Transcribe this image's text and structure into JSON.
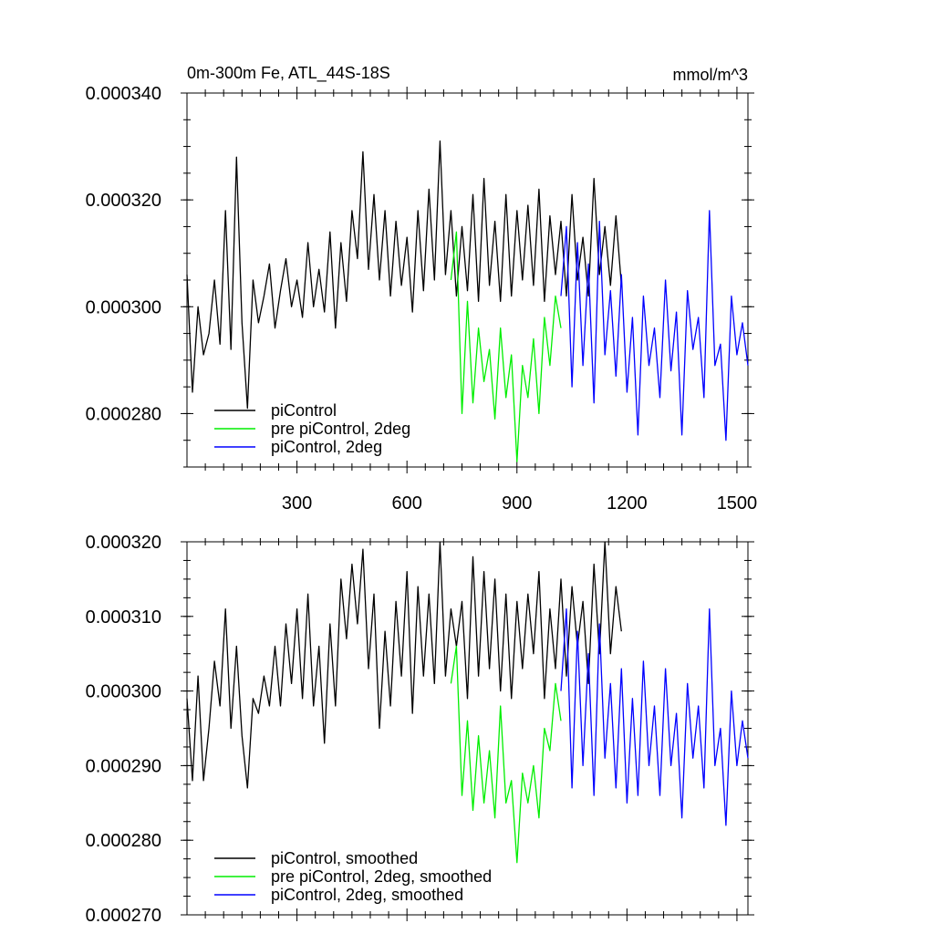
{
  "chart_data": [
    {
      "type": "line",
      "title": "0m-300m Fe, ATL_44S-18S",
      "units_label": "mmol/m^3",
      "xlim": [
        0,
        1530
      ],
      "ylim": [
        0.00027,
        0.00034
      ],
      "yticks": [
        0.00028,
        0.0003,
        0.00032,
        0.00034
      ],
      "ytick_labels": [
        "0.000280",
        "0.000300",
        "0.000320",
        "0.000340"
      ],
      "xticks": [
        300,
        600,
        900,
        1200,
        1500
      ],
      "xtick_labels": [
        "300",
        "600",
        "900",
        "1200",
        "1500"
      ],
      "legend_position": "bottom-left",
      "series": [
        {
          "name": "piControl",
          "color": "#000000",
          "x": [
            0,
            15,
            30,
            45,
            60,
            75,
            90,
            105,
            120,
            135,
            150,
            165,
            180,
            195,
            210,
            225,
            240,
            255,
            270,
            285,
            300,
            315,
            330,
            345,
            360,
            375,
            390,
            405,
            420,
            435,
            450,
            465,
            480,
            495,
            510,
            525,
            540,
            555,
            570,
            585,
            600,
            615,
            630,
            645,
            660,
            675,
            690,
            705,
            720,
            735,
            750,
            765,
            780,
            795,
            810,
            825,
            840,
            855,
            870,
            885,
            900,
            915,
            930,
            945,
            960,
            975,
            990,
            1005,
            1020,
            1035,
            1050,
            1065,
            1080,
            1095,
            1110,
            1125,
            1140,
            1155,
            1170,
            1185
          ],
          "values": [
            0.000306,
            0.000284,
            0.0003,
            0.000291,
            0.000295,
            0.000305,
            0.000293,
            0.000318,
            0.000292,
            0.000328,
            0.000297,
            0.000281,
            0.000305,
            0.000297,
            0.000302,
            0.000308,
            0.000296,
            0.000303,
            0.000309,
            0.0003,
            0.000305,
            0.000298,
            0.000312,
            0.0003,
            0.000307,
            0.000299,
            0.000314,
            0.000296,
            0.000312,
            0.000301,
            0.000318,
            0.000309,
            0.000329,
            0.000307,
            0.000321,
            0.000305,
            0.000318,
            0.000302,
            0.000316,
            0.000304,
            0.000313,
            0.000299,
            0.000318,
            0.000303,
            0.000322,
            0.000305,
            0.000331,
            0.000306,
            0.000318,
            0.000302,
            0.000315,
            0.000303,
            0.000321,
            0.000301,
            0.000324,
            0.000304,
            0.000316,
            0.000301,
            0.000321,
            0.000302,
            0.000318,
            0.000305,
            0.000319,
            0.000304,
            0.000322,
            0.000301,
            0.000317,
            0.000306,
            0.000316,
            0.000302,
            0.000321,
            0.000305,
            0.000313,
            0.000302,
            0.000324,
            0.000306,
            0.000315,
            0.000304,
            0.000317,
            0.000304
          ]
        },
        {
          "name": "pre piControl, 2deg",
          "color": "#00ee00",
          "x": [
            720,
            735,
            750,
            765,
            780,
            795,
            810,
            825,
            840,
            855,
            870,
            885,
            900,
            915,
            930,
            945,
            960,
            975,
            990,
            1005,
            1020
          ],
          "values": [
            0.000305,
            0.000314,
            0.00028,
            0.000301,
            0.000282,
            0.000296,
            0.000286,
            0.000292,
            0.000279,
            0.000296,
            0.000283,
            0.000291,
            0.000271,
            0.000289,
            0.000283,
            0.000294,
            0.00028,
            0.000298,
            0.000289,
            0.000302,
            0.000296
          ]
        },
        {
          "name": "piControl, 2deg",
          "color": "#0000ff",
          "x": [
            1020,
            1035,
            1050,
            1065,
            1080,
            1095,
            1110,
            1125,
            1140,
            1155,
            1170,
            1185,
            1200,
            1215,
            1230,
            1245,
            1260,
            1275,
            1290,
            1305,
            1320,
            1335,
            1350,
            1365,
            1380,
            1395,
            1410,
            1425,
            1440,
            1455,
            1470,
            1485,
            1500,
            1515,
            1530
          ],
          "values": [
            0.000302,
            0.000315,
            0.000285,
            0.000312,
            0.000289,
            0.000308,
            0.000282,
            0.000316,
            0.000291,
            0.000303,
            0.000287,
            0.000306,
            0.000284,
            0.000298,
            0.000276,
            0.000302,
            0.000289,
            0.000296,
            0.000283,
            0.000305,
            0.000288,
            0.000299,
            0.000276,
            0.000303,
            0.000292,
            0.000298,
            0.000283,
            0.000318,
            0.000289,
            0.000293,
            0.000275,
            0.000302,
            0.000291,
            0.000297,
            0.000289
          ]
        }
      ]
    },
    {
      "type": "line",
      "title": "",
      "xlim": [
        0,
        1530
      ],
      "ylim": [
        0.00027,
        0.00032
      ],
      "yticks": [
        0.00027,
        0.00028,
        0.00029,
        0.0003,
        0.00031,
        0.00032
      ],
      "ytick_labels": [
        "0.000270",
        "0.000280",
        "0.000290",
        "0.000300",
        "0.000310",
        "0.000320"
      ],
      "xticks": [
        300,
        600,
        900,
        1200,
        1500
      ],
      "legend_position": "bottom-left",
      "series": [
        {
          "name": "piControl, smoothed",
          "color": "#000000",
          "x": [
            0,
            15,
            30,
            45,
            60,
            75,
            90,
            105,
            120,
            135,
            150,
            165,
            180,
            195,
            210,
            225,
            240,
            255,
            270,
            285,
            300,
            315,
            330,
            345,
            360,
            375,
            390,
            405,
            420,
            435,
            450,
            465,
            480,
            495,
            510,
            525,
            540,
            555,
            570,
            585,
            600,
            615,
            630,
            645,
            660,
            675,
            690,
            705,
            720,
            735,
            750,
            765,
            780,
            795,
            810,
            825,
            840,
            855,
            870,
            885,
            900,
            915,
            930,
            945,
            960,
            975,
            990,
            1005,
            1020,
            1035,
            1050,
            1065,
            1080,
            1095,
            1110,
            1125,
            1140,
            1155,
            1170,
            1185
          ],
          "values": [
            0.000299,
            0.000288,
            0.000302,
            0.000288,
            0.000295,
            0.000304,
            0.000298,
            0.000311,
            0.000295,
            0.000306,
            0.000294,
            0.000287,
            0.000299,
            0.000297,
            0.000302,
            0.000298,
            0.000306,
            0.000298,
            0.000309,
            0.000301,
            0.000311,
            0.000299,
            0.000313,
            0.000298,
            0.000306,
            0.000293,
            0.000309,
            0.000298,
            0.000315,
            0.000307,
            0.000317,
            0.000309,
            0.000319,
            0.000303,
            0.000313,
            0.000295,
            0.000308,
            0.000298,
            0.000312,
            0.000302,
            0.000316,
            0.000297,
            0.000314,
            0.000302,
            0.000313,
            0.000301,
            0.00032,
            0.000302,
            0.000311,
            0.000306,
            0.000312,
            0.000299,
            0.000318,
            0.000302,
            0.000316,
            0.000303,
            0.000315,
            0.0003,
            0.000313,
            0.000299,
            0.000312,
            0.000303,
            0.000313,
            0.000305,
            0.000316,
            0.000299,
            0.000311,
            0.000303,
            0.000315,
            0.000302,
            0.000314,
            0.000306,
            0.000312,
            0.000301,
            0.000317,
            0.000305,
            0.00032,
            0.000305,
            0.000314,
            0.000308
          ]
        },
        {
          "name": "pre piControl, 2deg, smoothed",
          "color": "#00ee00",
          "x": [
            720,
            735,
            750,
            765,
            780,
            795,
            810,
            825,
            840,
            855,
            870,
            885,
            900,
            915,
            930,
            945,
            960,
            975,
            990,
            1005,
            1020
          ],
          "values": [
            0.000301,
            0.000306,
            0.000286,
            0.000296,
            0.000284,
            0.000294,
            0.000285,
            0.000292,
            0.000283,
            0.000298,
            0.000285,
            0.000288,
            0.000277,
            0.000289,
            0.000285,
            0.00029,
            0.000283,
            0.000295,
            0.000292,
            0.000301,
            0.000296
          ]
        },
        {
          "name": "piControl, 2deg, smoothed",
          "color": "#0000ff",
          "x": [
            1020,
            1035,
            1050,
            1065,
            1080,
            1095,
            1110,
            1125,
            1140,
            1155,
            1170,
            1185,
            1200,
            1215,
            1230,
            1245,
            1260,
            1275,
            1290,
            1305,
            1320,
            1335,
            1350,
            1365,
            1380,
            1395,
            1410,
            1425,
            1440,
            1455,
            1470,
            1485,
            1500,
            1515,
            1530
          ],
          "values": [
            0.0003,
            0.000311,
            0.000287,
            0.000308,
            0.00029,
            0.000305,
            0.000286,
            0.000309,
            0.000291,
            0.000301,
            0.000287,
            0.000303,
            0.000285,
            0.000299,
            0.000286,
            0.000304,
            0.00029,
            0.000298,
            0.000286,
            0.000303,
            0.00029,
            0.000297,
            0.000283,
            0.000301,
            0.000291,
            0.000298,
            0.000287,
            0.000311,
            0.00029,
            0.000295,
            0.000282,
            0.0003,
            0.00029,
            0.000296,
            0.000291
          ]
        }
      ]
    }
  ]
}
